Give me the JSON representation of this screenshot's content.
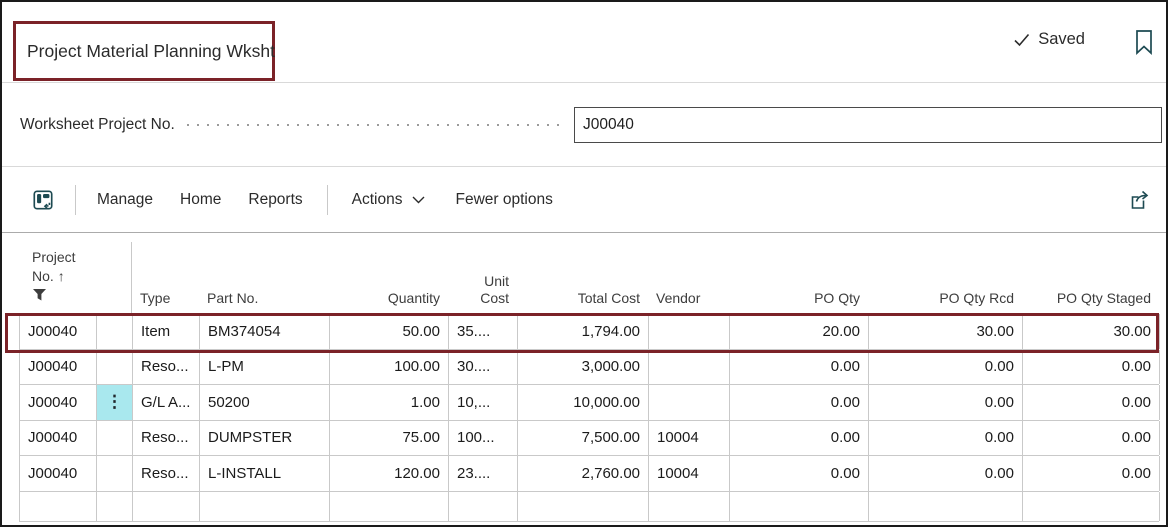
{
  "page": {
    "title": "Project Material Planning Wksht",
    "saved_label": "Saved"
  },
  "colors": {
    "annotation_red": "#7b2228",
    "highlight_cell_cyan": "#a9e8ee",
    "icon_teal": "#1d4a52"
  },
  "field": {
    "label": "Worksheet Project No.",
    "value": "J00040"
  },
  "toolbar": {
    "manage": "Manage",
    "home": "Home",
    "reports": "Reports",
    "actions": "Actions",
    "fewer_options": "Fewer options"
  },
  "table": {
    "header": {
      "project_line1": "Project",
      "project_line2": "No.",
      "sort_arrow": "↑",
      "cols": [
        "Type",
        "Part No.",
        "Quantity",
        "Unit Cost",
        "Total Cost",
        "Vendor",
        "PO Qty",
        "PO Qty Rcd",
        "PO Qty Staged"
      ]
    },
    "ellipsis_glyph": "⋮",
    "rows": [
      [
        "J00040",
        "",
        "Item",
        "BM374054",
        "50.00",
        "35....",
        "1,794.00",
        "",
        "20.00",
        "30.00",
        "30.00"
      ],
      [
        "J00040",
        "",
        "Reso...",
        "L-PM",
        "100.00",
        "30....",
        "3,000.00",
        "",
        "0.00",
        "0.00",
        "0.00"
      ],
      [
        "J00040",
        "⋮",
        "G/L A...",
        "50200",
        "1.00",
        "10,...",
        "10,000.00",
        "",
        "0.00",
        "0.00",
        "0.00"
      ],
      [
        "J00040",
        "",
        "Reso...",
        "DUMPSTER",
        "75.00",
        "100...",
        "7,500.00",
        "10004",
        "0.00",
        "0.00",
        "0.00"
      ],
      [
        "J00040",
        "",
        "Reso...",
        "L-INSTALL",
        "120.00",
        "23....",
        "2,760.00",
        "10004",
        "0.00",
        "0.00",
        "0.00"
      ],
      [
        "",
        "",
        "",
        "",
        "",
        "",
        "",
        "",
        "",
        "",
        ""
      ]
    ]
  }
}
